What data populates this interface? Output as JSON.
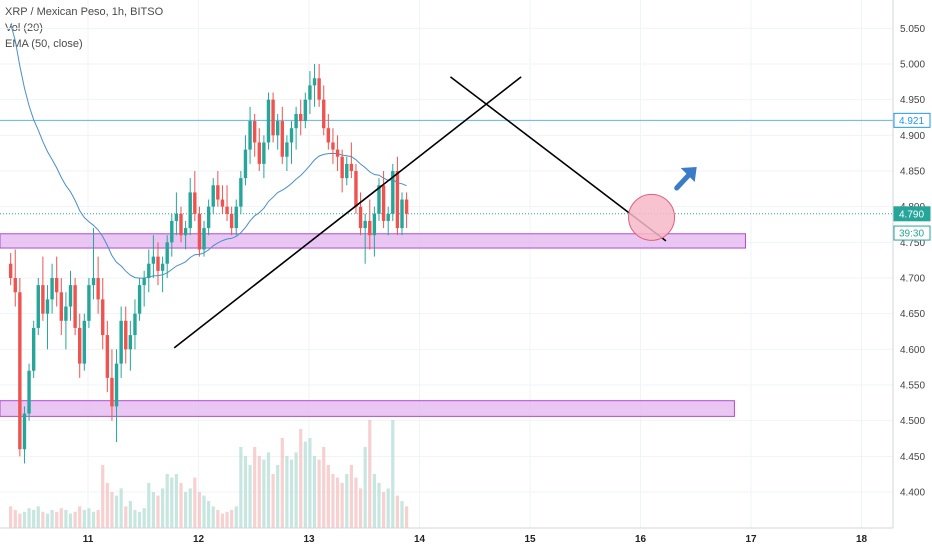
{
  "legend": {
    "symbol_line": "XRP / Mexican Peso, 1h, BITSO",
    "vol_line": "Vol (20)",
    "ema_line": "EMA (50, close)"
  },
  "chart_data": {
    "type": "candlestick",
    "y_axis": {
      "ticks": [
        "5.050",
        "5.000",
        "4.950",
        "4.900",
        "4.850",
        "4.800",
        "4.750",
        "4.700",
        "4.650",
        "4.600",
        "4.550",
        "4.500",
        "4.450",
        "4.400"
      ],
      "range": [
        4.36,
        5.08
      ]
    },
    "x_axis": {
      "ticks": [
        "11",
        "12",
        "13",
        "14",
        "15",
        "16",
        "17",
        "18"
      ],
      "range_days": [
        10.3,
        18.25
      ]
    },
    "price_tags": [
      {
        "label": "4.921",
        "value": 4.921,
        "color": "#2196f3",
        "style": "outline"
      },
      {
        "label": "4.790",
        "value": 4.79,
        "color": "#26a69a",
        "style": "filled"
      },
      {
        "label": "39:30",
        "value": 4.763,
        "color": "#26a69a",
        "style": "outline"
      }
    ],
    "horizontal_line": {
      "value": 4.921,
      "color": "#5fb6e4"
    },
    "last_price_line": {
      "value": 4.79,
      "color": "#26a69a"
    },
    "zones": [
      {
        "from_day": 10.3,
        "to_day": 16.95,
        "low": 4.742,
        "high": 4.762,
        "color": "#e5b8f0"
      },
      {
        "from_day": 10.3,
        "to_day": 16.85,
        "low": 4.506,
        "high": 4.528,
        "color": "#e5b8f0"
      }
    ],
    "trendlines": [
      {
        "x1": 11.78,
        "y1": 4.602,
        "x2": 14.92,
        "y2": 4.982
      },
      {
        "x1": 14.28,
        "y1": 4.982,
        "x2": 16.23,
        "y2": 4.752
      }
    ],
    "circle": {
      "day": 16.1,
      "value": 4.785,
      "fill": "#f7b8c8",
      "stroke": "#e0607e"
    },
    "arrow": {
      "day": 16.4,
      "value": 4.843,
      "color": "#3a7cc7",
      "direction": "up-right"
    },
    "candle_start_day": 10.3,
    "candle_interval_hours": 1,
    "candles": [
      [
        4.72,
        4.735,
        4.69,
        4.7
      ],
      [
        4.7,
        4.74,
        4.66,
        4.68
      ],
      [
        4.68,
        4.7,
        4.45,
        4.46
      ],
      [
        4.46,
        4.52,
        4.44,
        4.51
      ],
      [
        4.51,
        4.58,
        4.5,
        4.57
      ],
      [
        4.57,
        4.64,
        4.56,
        4.63
      ],
      [
        4.63,
        4.7,
        4.62,
        4.69
      ],
      [
        4.69,
        4.73,
        4.64,
        4.65
      ],
      [
        4.65,
        4.69,
        4.6,
        4.67
      ],
      [
        4.67,
        4.72,
        4.65,
        4.7
      ],
      [
        4.7,
        4.73,
        4.66,
        4.68
      ],
      [
        4.68,
        4.7,
        4.62,
        4.64
      ],
      [
        4.64,
        4.68,
        4.6,
        4.66
      ],
      [
        4.66,
        4.71,
        4.64,
        4.69
      ],
      [
        4.69,
        4.7,
        4.62,
        4.63
      ],
      [
        4.63,
        4.65,
        4.56,
        4.58
      ],
      [
        4.58,
        4.65,
        4.57,
        4.64
      ],
      [
        4.64,
        4.7,
        4.63,
        4.69
      ],
      [
        4.69,
        4.77,
        4.67,
        4.7
      ],
      [
        4.7,
        4.73,
        4.65,
        4.67
      ],
      [
        4.67,
        4.7,
        4.6,
        4.62
      ],
      [
        4.62,
        4.64,
        4.54,
        4.56
      ],
      [
        4.56,
        4.6,
        4.5,
        4.52
      ],
      [
        4.52,
        4.6,
        4.47,
        4.58
      ],
      [
        4.58,
        4.66,
        4.56,
        4.64
      ],
      [
        4.64,
        4.66,
        4.58,
        4.6
      ],
      [
        4.6,
        4.64,
        4.57,
        4.62
      ],
      [
        4.62,
        4.67,
        4.6,
        4.65
      ],
      [
        4.65,
        4.7,
        4.64,
        4.69
      ],
      [
        4.69,
        4.71,
        4.66,
        4.7
      ],
      [
        4.7,
        4.74,
        4.68,
        4.72
      ],
      [
        4.72,
        4.76,
        4.7,
        4.73
      ],
      [
        4.73,
        4.75,
        4.69,
        4.71
      ],
      [
        4.71,
        4.73,
        4.68,
        4.72
      ],
      [
        4.72,
        4.76,
        4.7,
        4.75
      ],
      [
        4.75,
        4.79,
        4.73,
        4.78
      ],
      [
        4.78,
        4.82,
        4.76,
        4.79
      ],
      [
        4.79,
        4.8,
        4.75,
        4.76
      ],
      [
        4.76,
        4.78,
        4.74,
        4.77
      ],
      [
        4.77,
        4.84,
        4.76,
        4.82
      ],
      [
        4.82,
        4.85,
        4.78,
        4.79
      ],
      [
        4.79,
        4.8,
        4.73,
        4.74
      ],
      [
        4.74,
        4.78,
        4.73,
        4.77
      ],
      [
        4.77,
        4.81,
        4.76,
        4.8
      ],
      [
        4.8,
        4.84,
        4.79,
        4.83
      ],
      [
        4.83,
        4.85,
        4.8,
        4.81
      ],
      [
        4.81,
        4.83,
        4.79,
        4.8
      ],
      [
        4.8,
        4.83,
        4.78,
        4.79
      ],
      [
        4.79,
        4.8,
        4.76,
        4.77
      ],
      [
        4.77,
        4.81,
        4.76,
        4.8
      ],
      [
        4.8,
        4.85,
        4.79,
        4.84
      ],
      [
        4.84,
        4.9,
        4.83,
        4.88
      ],
      [
        4.88,
        4.94,
        4.86,
        4.92
      ],
      [
        4.92,
        4.93,
        4.87,
        4.89
      ],
      [
        4.89,
        4.91,
        4.85,
        4.86
      ],
      [
        4.86,
        4.9,
        4.84,
        4.89
      ],
      [
        4.89,
        4.96,
        4.88,
        4.95
      ],
      [
        4.95,
        4.96,
        4.89,
        4.9
      ],
      [
        4.9,
        4.93,
        4.88,
        4.92
      ],
      [
        4.92,
        4.94,
        4.86,
        4.87
      ],
      [
        4.87,
        4.9,
        4.85,
        4.89
      ],
      [
        4.89,
        4.92,
        4.86,
        4.91
      ],
      [
        4.91,
        4.94,
        4.88,
        4.93
      ],
      [
        4.93,
        4.95,
        4.9,
        4.92
      ],
      [
        4.92,
        4.96,
        4.91,
        4.95
      ],
      [
        4.95,
        4.99,
        4.93,
        4.97
      ],
      [
        4.97,
        5.0,
        4.94,
        4.98
      ],
      [
        4.98,
        5.0,
        4.94,
        4.95
      ],
      [
        4.95,
        4.97,
        4.9,
        4.91
      ],
      [
        4.91,
        4.93,
        4.88,
        4.89
      ],
      [
        4.89,
        4.91,
        4.86,
        4.88
      ],
      [
        4.88,
        4.9,
        4.85,
        4.87
      ],
      [
        4.87,
        4.88,
        4.82,
        4.84
      ],
      [
        4.84,
        4.87,
        4.83,
        4.86
      ],
      [
        4.86,
        4.89,
        4.84,
        4.85
      ],
      [
        4.85,
        4.86,
        4.79,
        4.8
      ],
      [
        4.8,
        4.82,
        4.76,
        4.77
      ],
      [
        4.77,
        4.79,
        4.72,
        4.78
      ],
      [
        4.78,
        4.81,
        4.74,
        4.76
      ],
      [
        4.76,
        4.8,
        4.73,
        4.79
      ],
      [
        4.79,
        4.84,
        4.78,
        4.83
      ],
      [
        4.83,
        4.85,
        4.77,
        4.78
      ],
      [
        4.78,
        4.8,
        4.76,
        4.79
      ],
      [
        4.79,
        4.86,
        4.78,
        4.85
      ],
      [
        4.85,
        4.87,
        4.76,
        4.77
      ],
      [
        4.77,
        4.82,
        4.76,
        4.81
      ],
      [
        4.81,
        4.82,
        4.77,
        4.79
      ]
    ],
    "volume": [
      12,
      10,
      8,
      9,
      11,
      10,
      12,
      9,
      8,
      10,
      9,
      11,
      10,
      8,
      9,
      12,
      10,
      11,
      9,
      10,
      35,
      25,
      20,
      18,
      22,
      12,
      15,
      10,
      9,
      11,
      25,
      20,
      18,
      22,
      30,
      28,
      30,
      25,
      20,
      22,
      28,
      20,
      18,
      15,
      12,
      10,
      8,
      9,
      10,
      12,
      45,
      40,
      35,
      45,
      40,
      38,
      42,
      30,
      35,
      50,
      40,
      38,
      42,
      55,
      48,
      50,
      40,
      38,
      45,
      35,
      30,
      28,
      25,
      30,
      35,
      28,
      22,
      45,
      60,
      30,
      25,
      20,
      22,
      60,
      18,
      15,
      12
    ]
  }
}
